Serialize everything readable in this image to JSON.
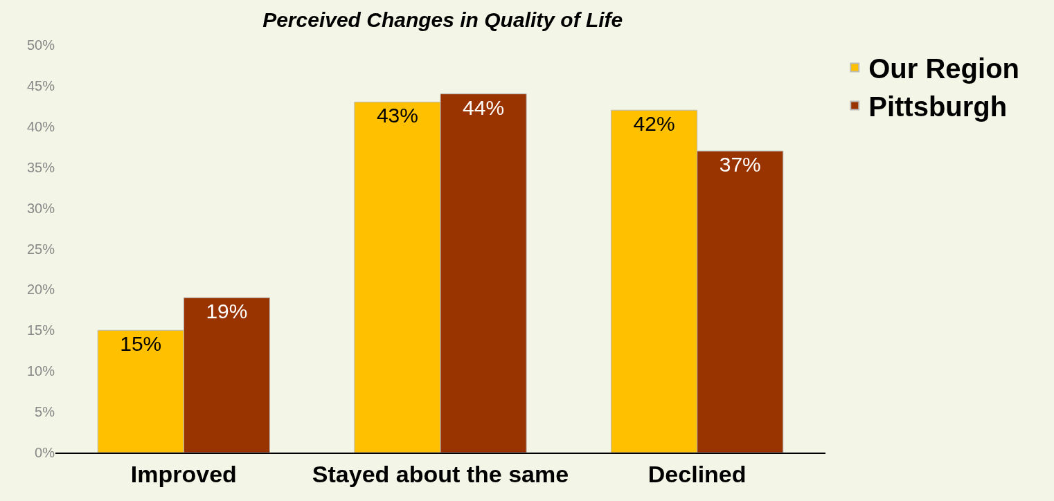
{
  "chart_data": {
    "type": "bar",
    "title": "Perceived Changes in Quality of Life",
    "categories": [
      "Improved",
      "Stayed about the same",
      "Declined"
    ],
    "series": [
      {
        "name": "Our Region",
        "color": "#ffc000",
        "values": [
          15,
          43,
          42
        ]
      },
      {
        "name": "Pittsburgh",
        "color": "#993300",
        "values": [
          19,
          44,
          37
        ]
      }
    ],
    "value_labels": [
      [
        "15%",
        "43%",
        "42%"
      ],
      [
        "19%",
        "44%",
        "37%"
      ]
    ],
    "ylim": [
      0,
      50
    ],
    "yticks": [
      {
        "value": 0,
        "label": "0%"
      },
      {
        "value": 5,
        "label": "5%"
      },
      {
        "value": 10,
        "label": "10%"
      },
      {
        "value": 15,
        "label": "15%"
      },
      {
        "value": 20,
        "label": "20%"
      },
      {
        "value": 25,
        "label": "25%"
      },
      {
        "value": 30,
        "label": "30%"
      },
      {
        "value": 35,
        "label": "35%"
      },
      {
        "value": 40,
        "label": "40%"
      },
      {
        "value": 45,
        "label": "45%"
      },
      {
        "value": 50,
        "label": "50%"
      }
    ],
    "grid": false,
    "legend": "top right"
  }
}
